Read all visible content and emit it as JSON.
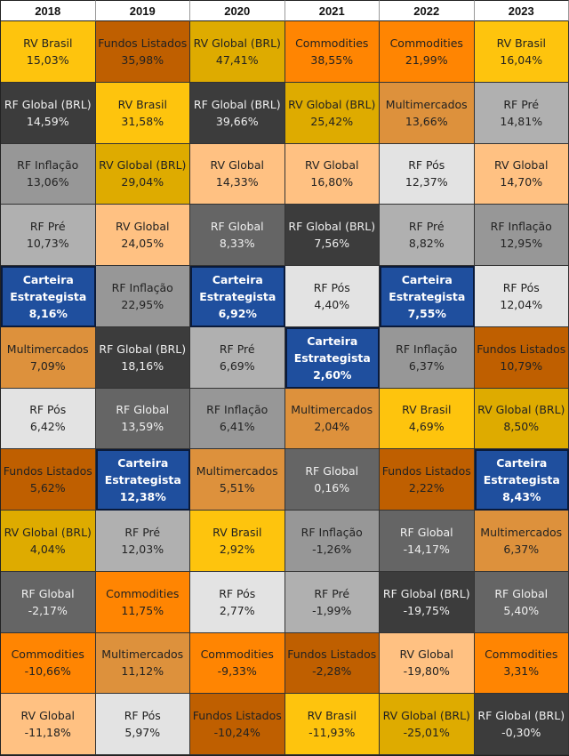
{
  "chart_data": {
    "type": "table",
    "title": "",
    "years": [
      "2018",
      "2019",
      "2020",
      "2021",
      "2022",
      "2023"
    ],
    "colors": {
      "RV Brasil": "#fec40d",
      "Fundos Listados": "#bf5f00",
      "RV Global (BRL)": "#deab00",
      "RF Global (BRL)": "#3c3c3c",
      "RF Inflação": "#979797",
      "RV Global": "#ffc182",
      "RF Pré": "#b0b0b0",
      "RF Global": "#656565",
      "Carteira Estrategista": "#1f4f9e",
      "Multimercados": "#dd913c",
      "RF Pós": "#e3e3e3",
      "Commodities": "#ff8502"
    },
    "dark_assets": [
      "RF Global (BRL)",
      "RF Global"
    ],
    "columns": [
      {
        "year": "2018",
        "cells": [
          {
            "asset": "RV Brasil",
            "value": "15,03%"
          },
          {
            "asset": "RF Global (BRL)",
            "value": "14,59%"
          },
          {
            "asset": "RF Inflação",
            "value": "13,06%"
          },
          {
            "asset": "RF Pré",
            "value": "10,73%"
          },
          {
            "asset": "Carteira Estrategista",
            "value": "8,16%"
          },
          {
            "asset": "Multimercados",
            "value": "7,09%"
          },
          {
            "asset": "RF Pós",
            "value": "6,42%"
          },
          {
            "asset": "Fundos Listados",
            "value": "5,62%"
          },
          {
            "asset": "RV Global (BRL)",
            "value": "4,04%"
          },
          {
            "asset": "RF Global",
            "value": "-2,17%"
          },
          {
            "asset": "Commodities",
            "value": "-10,66%"
          },
          {
            "asset": "RV Global",
            "value": "-11,18%"
          }
        ]
      },
      {
        "year": "2019",
        "cells": [
          {
            "asset": "Fundos Listados",
            "value": "35,98%"
          },
          {
            "asset": "RV Brasil",
            "value": "31,58%"
          },
          {
            "asset": "RV Global (BRL)",
            "value": "29,04%"
          },
          {
            "asset": "RV Global",
            "value": "24,05%"
          },
          {
            "asset": "RF Inflação",
            "value": "22,95%"
          },
          {
            "asset": "RF Global (BRL)",
            "value": "18,16%"
          },
          {
            "asset": "RF Global",
            "value": "13,59%"
          },
          {
            "asset": "Carteira Estrategista",
            "value": "12,38%"
          },
          {
            "asset": "RF Pré",
            "value": "12,03%"
          },
          {
            "asset": "Commodities",
            "value": "11,75%"
          },
          {
            "asset": "Multimercados",
            "value": "11,12%"
          },
          {
            "asset": "RF Pós",
            "value": "5,97%"
          }
        ]
      },
      {
        "year": "2020",
        "cells": [
          {
            "asset": "RV Global (BRL)",
            "value": "47,41%"
          },
          {
            "asset": "RF Global (BRL)",
            "value": "39,66%"
          },
          {
            "asset": "RV Global",
            "value": "14,33%"
          },
          {
            "asset": "RF Global",
            "value": "8,33%"
          },
          {
            "asset": "Carteira Estrategista",
            "value": "6,92%"
          },
          {
            "asset": "RF Pré",
            "value": "6,69%"
          },
          {
            "asset": "RF Inflação",
            "value": "6,41%"
          },
          {
            "asset": "Multimercados",
            "value": "5,51%"
          },
          {
            "asset": "RV Brasil",
            "value": "2,92%"
          },
          {
            "asset": "RF Pós",
            "value": "2,77%"
          },
          {
            "asset": "Commodities",
            "value": "-9,33%"
          },
          {
            "asset": "Fundos Listados",
            "value": "-10,24%"
          }
        ]
      },
      {
        "year": "2021",
        "cells": [
          {
            "asset": "Commodities",
            "value": "38,55%"
          },
          {
            "asset": "RV Global (BRL)",
            "value": "25,42%"
          },
          {
            "asset": "RV Global",
            "value": "16,80%"
          },
          {
            "asset": "RF Global (BRL)",
            "value": "7,56%"
          },
          {
            "asset": "RF Pós",
            "value": "4,40%"
          },
          {
            "asset": "Carteira Estrategista",
            "value": "2,60%"
          },
          {
            "asset": "Multimercados",
            "value": "2,04%"
          },
          {
            "asset": "RF Global",
            "value": "0,16%"
          },
          {
            "asset": "RF Inflação",
            "value": "-1,26%"
          },
          {
            "asset": "RF Pré",
            "value": "-1,99%"
          },
          {
            "asset": "Fundos Listados",
            "value": "-2,28%"
          },
          {
            "asset": "RV Brasil",
            "value": "-11,93%"
          }
        ]
      },
      {
        "year": "2022",
        "cells": [
          {
            "asset": "Commodities",
            "value": "21,99%"
          },
          {
            "asset": "Multimercados",
            "value": "13,66%"
          },
          {
            "asset": "RF Pós",
            "value": "12,37%"
          },
          {
            "asset": "RF Pré",
            "value": "8,82%"
          },
          {
            "asset": "Carteira Estrategista",
            "value": "7,55%"
          },
          {
            "asset": "RF Inflação",
            "value": "6,37%"
          },
          {
            "asset": "RV Brasil",
            "value": "4,69%"
          },
          {
            "asset": "Fundos Listados",
            "value": "2,22%"
          },
          {
            "asset": "RF Global",
            "value": "-14,17%"
          },
          {
            "asset": "RF Global (BRL)",
            "value": "-19,75%"
          },
          {
            "asset": "RV Global",
            "value": "-19,80%"
          },
          {
            "asset": "RV Global (BRL)",
            "value": "-25,01%"
          }
        ]
      },
      {
        "year": "2023",
        "cells": [
          {
            "asset": "RV Brasil",
            "value": "16,04%"
          },
          {
            "asset": "RF Pré",
            "value": "14,81%"
          },
          {
            "asset": "RV Global",
            "value": "14,70%"
          },
          {
            "asset": "RF Inflação",
            "value": "12,95%"
          },
          {
            "asset": "RF Pós",
            "value": "12,04%"
          },
          {
            "asset": "Fundos Listados",
            "value": "10,79%"
          },
          {
            "asset": "RV Global (BRL)",
            "value": "8,50%"
          },
          {
            "asset": "Carteira Estrategista",
            "value": "8,43%"
          },
          {
            "asset": "Multimercados",
            "value": "6,37%"
          },
          {
            "asset": "RF Global",
            "value": "5,40%"
          },
          {
            "asset": "Commodities",
            "value": "3,31%"
          },
          {
            "asset": "RF Global (BRL)",
            "value": "-0,30%"
          }
        ]
      }
    ]
  }
}
